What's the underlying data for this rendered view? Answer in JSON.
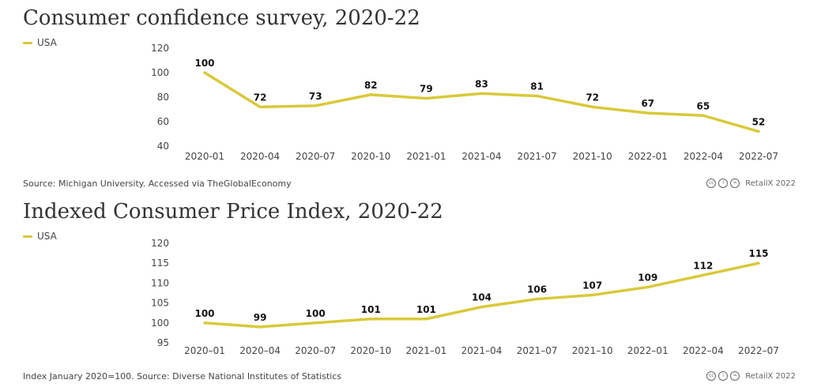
{
  "colors": {
    "series": "#d9c93b",
    "text": "#333333",
    "axis": "#444444"
  },
  "credit": {
    "cc_icon": "cc-icon",
    "by_icon": "by-icon",
    "nd_icon": "nd-icon",
    "text": "RetailX 2022"
  },
  "chart_data": [
    {
      "type": "line",
      "title": "Consumer confidence survey, 2020-22",
      "xlabel": "",
      "ylabel": "",
      "categories": [
        "2020-01",
        "2020-04",
        "2020-07",
        "2020-10",
        "2021-01",
        "2021-04",
        "2021-07",
        "2021-10",
        "2022-01",
        "2022-04",
        "2022-07"
      ],
      "series": [
        {
          "name": "USA",
          "values": [
            100,
            72,
            73,
            82,
            79,
            83,
            81,
            72,
            67,
            65,
            52
          ]
        }
      ],
      "yticks": [
        40,
        60,
        80,
        100,
        120
      ],
      "ylim": [
        40,
        120
      ],
      "grid": false,
      "legend": "top-left",
      "source": "Source: Michigan University. Accessed via TheGlobalEconomy"
    },
    {
      "type": "line",
      "title": "Indexed Consumer Price Index, 2020-22",
      "xlabel": "",
      "ylabel": "",
      "categories": [
        "2020–01",
        "2020–04",
        "2020–07",
        "2020–10",
        "2021–01",
        "2021–04",
        "2021–07",
        "2021–10",
        "2022–01",
        "2022–04",
        "2022–07"
      ],
      "series": [
        {
          "name": "USA",
          "values": [
            100,
            99,
            100,
            101,
            101,
            104,
            106,
            107,
            109,
            112,
            115
          ]
        }
      ],
      "yticks": [
        95,
        100,
        105,
        110,
        115,
        120
      ],
      "ylim": [
        95,
        120
      ],
      "grid": false,
      "legend": "top-left",
      "source": "Index January 2020=100. Source: Diverse National Institutes of Statistics"
    }
  ]
}
